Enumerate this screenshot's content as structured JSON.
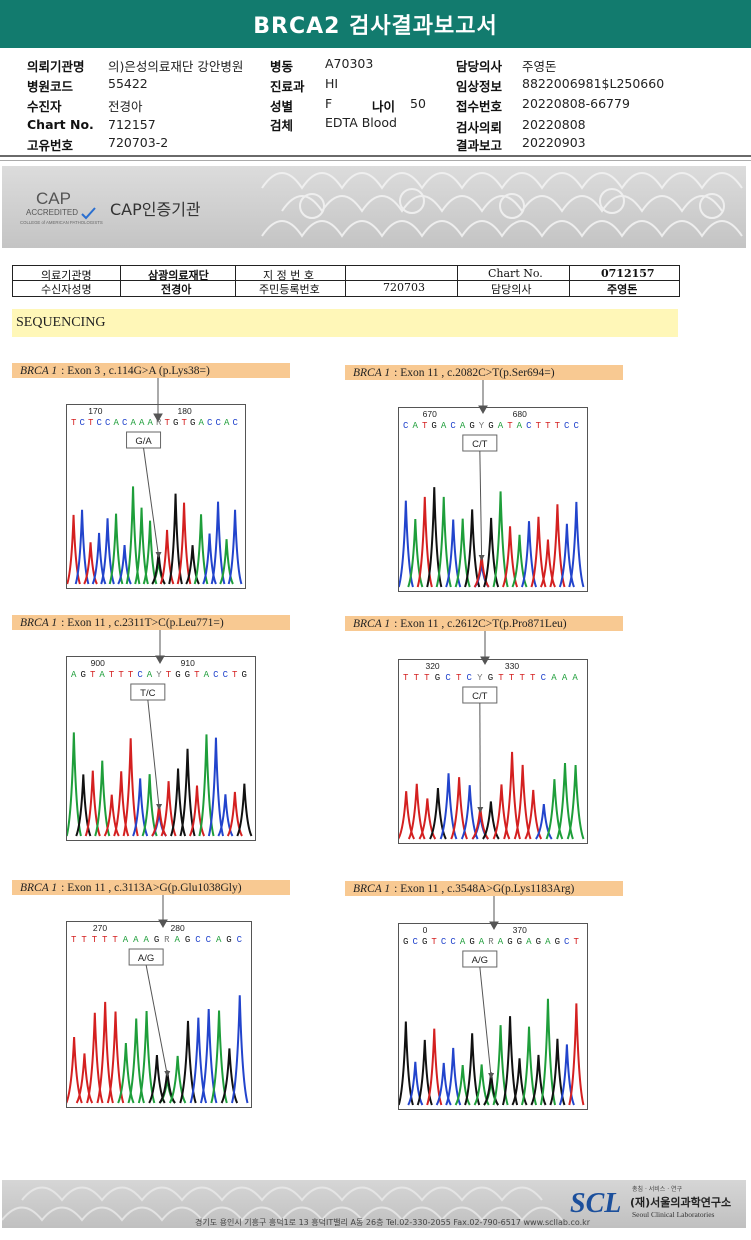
{
  "title": "BRCA2 검사결과보고서",
  "info_col1": [
    {
      "label": "의뢰기관명",
      "value": "의)은성의료재단 강안병원"
    },
    {
      "label": "병원코드",
      "value": "55422"
    },
    {
      "label": "수진자",
      "value": "전경아"
    },
    {
      "label": "Chart No.",
      "value": "712157"
    },
    {
      "label": "고유번호",
      "value": "720703-2"
    }
  ],
  "info_col2": [
    {
      "label": "병동",
      "value": "A70303"
    },
    {
      "label": "진료과",
      "value": "HI"
    },
    {
      "label": "성별",
      "value": "F"
    },
    {
      "label": "검체",
      "value": "EDTA Blood"
    }
  ],
  "age": {
    "label": "나이",
    "value": "50"
  },
  "info_col3": [
    {
      "label": "담당의사",
      "value": "주영돈"
    },
    {
      "label": "임상정보",
      "value": "8822006981$L250660"
    },
    {
      "label": "접수번호",
      "value": "20220808-66779"
    },
    {
      "label": "검사의뢰",
      "value": "20220808"
    },
    {
      "label": "결과보고",
      "value": "20220903"
    }
  ],
  "cap": {
    "logo": "CAP",
    "accredited": "ACCREDITED",
    "college": "COLLEGE of AMERICAN PATHOLOGISTS",
    "text": "CAP인증기관"
  },
  "patient_table": {
    "r1": [
      "의료기관명",
      "삼광의료재단",
      "지 정 번 호",
      "",
      "Chart No.",
      "0712157"
    ],
    "r2": [
      "수신자성명",
      "전경아",
      "주민등록번호",
      "720703",
      "담당의사",
      "주영돈"
    ]
  },
  "sequencing_label": "SEQUENCING",
  "variants": [
    {
      "gene": "BRCA 1",
      "desc": ": Exon 3 , c.114G>A (p.Lys38=)",
      "pos1": "170",
      "pos2": "180",
      "seq": "TCTCCACAAARTGTGACCAC",
      "call": "G/A"
    },
    {
      "gene": "BRCA 1",
      "desc": ": Exon 11 , c.2082C>T(p.Ser694=)",
      "pos1": "670",
      "pos2": "680",
      "seq": "CATGACAGYGATACTTTCC",
      "call": "C/T"
    },
    {
      "gene": "BRCA 1",
      "desc": ": Exon 11 , c.2311T>C(p.Leu771=)",
      "pos1": "900",
      "pos2": "910",
      "seq": "AGTATTTCAYTGGTACCTG",
      "call": "T/C"
    },
    {
      "gene": "BRCA 1",
      "desc": ": Exon 11 , c.2612C>T(p.Pro871Leu)",
      "pos1": "320",
      "pos2": "330",
      "seq": "TTTGCTCYGTTTTCAAA",
      "call": "C/T"
    },
    {
      "gene": "BRCA 1",
      "desc": ": Exon 11 , c.3113A>G(p.Glu1038Gly)",
      "pos1": "270",
      "pos2": "280",
      "seq": "TTTTTAAAGRAGCCAGC",
      "call": "A/G"
    },
    {
      "gene": "BRCA 1",
      "desc": ": Exon 11 , c.3548A>G(p.Lys1183Arg)",
      "pos1": "0",
      "pos2": "370",
      "seq": "GCGTCCAGARAGGAGAGCT",
      "call": "A/G"
    }
  ],
  "footer": {
    "address": "경기도 용인시 기흥구 흥덕1로 13 흥덕IT밸리 A동 26층  Tel.02-330-2055  Fax.02-790-6517  www.scllab.co.kr",
    "slogan": "총침 · 서비스 · 연구",
    "org_kr": "(재)서울의과학연구소",
    "org_en": "Seoul Clinical Laboratories",
    "logo": "SCL"
  },
  "colors": {
    "header": "#127b6e",
    "A": "#1e9e3a",
    "C": "#2244cc",
    "G": "#111111",
    "T": "#d42020"
  }
}
